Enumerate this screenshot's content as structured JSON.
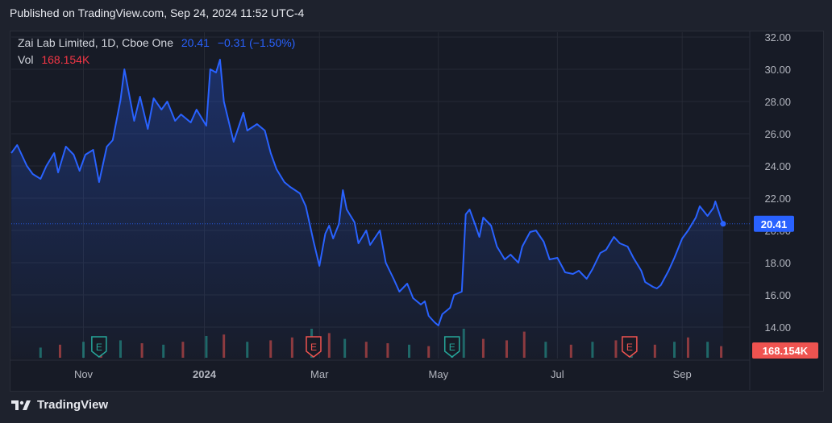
{
  "header": {
    "published": "Published on TradingView.com, Sep 24, 2024 11:52 UTC-4"
  },
  "legend": {
    "symbol": "Zai Lab Limited, 1D, Cboe One",
    "price": "20.41",
    "change": "−0.31 (−1.50%)",
    "vol_label": "Vol",
    "vol_value": "168.154K"
  },
  "footer": {
    "brand": "TradingView"
  },
  "colors": {
    "line": "#2962ff",
    "up_volume": "#26a69a",
    "down_volume": "#ef5350",
    "earnings_up": "#26a69a",
    "earnings_down": "#ef5350",
    "background": "#171b26"
  },
  "chart_data": {
    "type": "line",
    "ylim": [
      13,
      32.5
    ],
    "y_ticks": [
      "32.00",
      "30.00",
      "28.00",
      "26.00",
      "24.00",
      "22.00",
      "20.00",
      "18.00",
      "16.00",
      "14.00"
    ],
    "y_tick_values": [
      32,
      30,
      28,
      26,
      24,
      22,
      20,
      18,
      16,
      14
    ],
    "x_labels": [
      {
        "label": "Nov",
        "x": "2023-11-01"
      },
      {
        "label": "2024",
        "x": "2024-01-02"
      },
      {
        "label": "Mar",
        "x": "2024-03-01"
      },
      {
        "label": "May",
        "x": "2024-05-01"
      },
      {
        "label": "Jul",
        "x": "2024-07-01"
      },
      {
        "label": "Sep",
        "x": "2024-09-03"
      }
    ],
    "last_price_label": "20.41",
    "volume_label": "168.154K",
    "series": [
      {
        "points": [
          [
            "2023-09-25",
            24.8
          ],
          [
            "2023-09-28",
            25.3
          ],
          [
            "2023-10-03",
            24.0
          ],
          [
            "2023-10-06",
            23.5
          ],
          [
            "2023-10-10",
            23.2
          ],
          [
            "2023-10-13",
            24.0
          ],
          [
            "2023-10-17",
            24.8
          ],
          [
            "2023-10-19",
            23.6
          ],
          [
            "2023-10-23",
            25.2
          ],
          [
            "2023-10-27",
            24.7
          ],
          [
            "2023-10-30",
            23.7
          ],
          [
            "2023-11-02",
            24.7
          ],
          [
            "2023-11-06",
            25.0
          ],
          [
            "2023-11-09",
            23.0
          ],
          [
            "2023-11-13",
            25.2
          ],
          [
            "2023-11-16",
            25.6
          ],
          [
            "2023-11-20",
            28.1
          ],
          [
            "2023-11-22",
            30.0
          ],
          [
            "2023-11-27",
            26.8
          ],
          [
            "2023-11-30",
            28.3
          ],
          [
            "2023-12-04",
            26.3
          ],
          [
            "2023-12-07",
            28.2
          ],
          [
            "2023-12-11",
            27.5
          ],
          [
            "2023-12-14",
            28.0
          ],
          [
            "2023-12-18",
            26.8
          ],
          [
            "2023-12-21",
            27.2
          ],
          [
            "2023-12-26",
            26.7
          ],
          [
            "2023-12-29",
            27.5
          ],
          [
            "2024-01-03",
            26.5
          ],
          [
            "2024-01-05",
            30.0
          ],
          [
            "2024-01-08",
            29.8
          ],
          [
            "2024-01-10",
            30.6
          ],
          [
            "2024-01-12",
            28.0
          ],
          [
            "2024-01-17",
            25.5
          ],
          [
            "2024-01-22",
            27.3
          ],
          [
            "2024-01-24",
            26.2
          ],
          [
            "2024-01-29",
            26.6
          ],
          [
            "2024-02-02",
            26.2
          ],
          [
            "2024-02-05",
            24.8
          ],
          [
            "2024-02-08",
            23.8
          ],
          [
            "2024-02-12",
            23.0
          ],
          [
            "2024-02-15",
            22.7
          ],
          [
            "2024-02-20",
            22.3
          ],
          [
            "2024-02-23",
            21.5
          ],
          [
            "2024-02-27",
            19.3
          ],
          [
            "2024-03-01",
            17.8
          ],
          [
            "2024-03-04",
            19.8
          ],
          [
            "2024-03-06",
            20.3
          ],
          [
            "2024-03-08",
            19.5
          ],
          [
            "2024-03-11",
            20.4
          ],
          [
            "2024-03-13",
            22.5
          ],
          [
            "2024-03-15",
            21.3
          ],
          [
            "2024-03-19",
            20.5
          ],
          [
            "2024-03-21",
            19.2
          ],
          [
            "2024-03-25",
            20.0
          ],
          [
            "2024-03-27",
            19.1
          ],
          [
            "2024-04-01",
            20.0
          ],
          [
            "2024-04-04",
            18.0
          ],
          [
            "2024-04-08",
            17.0
          ],
          [
            "2024-04-11",
            16.2
          ],
          [
            "2024-04-15",
            16.7
          ],
          [
            "2024-04-18",
            15.8
          ],
          [
            "2024-04-22",
            15.4
          ],
          [
            "2024-04-24",
            15.6
          ],
          [
            "2024-04-26",
            14.7
          ],
          [
            "2024-04-29",
            14.3
          ],
          [
            "2024-05-01",
            14.1
          ],
          [
            "2024-05-03",
            14.8
          ],
          [
            "2024-05-07",
            15.2
          ],
          [
            "2024-05-09",
            16.0
          ],
          [
            "2024-05-13",
            16.2
          ],
          [
            "2024-05-15",
            21.0
          ],
          [
            "2024-05-17",
            21.3
          ],
          [
            "2024-05-20",
            20.3
          ],
          [
            "2024-05-22",
            19.6
          ],
          [
            "2024-05-24",
            20.8
          ],
          [
            "2024-05-28",
            20.3
          ],
          [
            "2024-05-31",
            19.0
          ],
          [
            "2024-06-04",
            18.2
          ],
          [
            "2024-06-07",
            18.5
          ],
          [
            "2024-06-11",
            18.0
          ],
          [
            "2024-06-13",
            19.0
          ],
          [
            "2024-06-17",
            19.9
          ],
          [
            "2024-06-20",
            20.0
          ],
          [
            "2024-06-24",
            19.3
          ],
          [
            "2024-06-27",
            18.2
          ],
          [
            "2024-07-01",
            18.3
          ],
          [
            "2024-07-05",
            17.4
          ],
          [
            "2024-07-09",
            17.3
          ],
          [
            "2024-07-12",
            17.5
          ],
          [
            "2024-07-16",
            17.0
          ],
          [
            "2024-07-19",
            17.6
          ],
          [
            "2024-07-23",
            18.6
          ],
          [
            "2024-07-26",
            18.8
          ],
          [
            "2024-07-30",
            19.6
          ],
          [
            "2024-08-02",
            19.2
          ],
          [
            "2024-08-06",
            19.0
          ],
          [
            "2024-08-09",
            18.3
          ],
          [
            "2024-08-13",
            17.5
          ],
          [
            "2024-08-15",
            16.8
          ],
          [
            "2024-08-19",
            16.5
          ],
          [
            "2024-08-21",
            16.4
          ],
          [
            "2024-08-23",
            16.6
          ],
          [
            "2024-08-27",
            17.5
          ],
          [
            "2024-08-30",
            18.3
          ],
          [
            "2024-09-03",
            19.5
          ],
          [
            "2024-09-06",
            20.0
          ],
          [
            "2024-09-10",
            20.8
          ],
          [
            "2024-09-12",
            21.5
          ],
          [
            "2024-09-16",
            20.9
          ],
          [
            "2024-09-19",
            21.4
          ],
          [
            "2024-09-20",
            21.8
          ],
          [
            "2024-09-23",
            20.7
          ],
          [
            "2024-09-24",
            20.41
          ]
        ]
      }
    ],
    "volume": [
      {
        "x": "2023-10-10",
        "v": 0.35,
        "up": true
      },
      {
        "x": "2023-10-20",
        "v": 0.45,
        "up": false
      },
      {
        "x": "2023-11-01",
        "v": 0.55,
        "up": true
      },
      {
        "x": "2023-11-10",
        "v": 0.4,
        "up": false
      },
      {
        "x": "2023-11-20",
        "v": 0.6,
        "up": true
      },
      {
        "x": "2023-12-01",
        "v": 0.5,
        "up": false
      },
      {
        "x": "2023-12-12",
        "v": 0.45,
        "up": true
      },
      {
        "x": "2023-12-22",
        "v": 0.55,
        "up": false
      },
      {
        "x": "2024-01-03",
        "v": 0.75,
        "up": true
      },
      {
        "x": "2024-01-12",
        "v": 0.8,
        "up": false
      },
      {
        "x": "2024-01-24",
        "v": 0.55,
        "up": true
      },
      {
        "x": "2024-02-05",
        "v": 0.6,
        "up": false
      },
      {
        "x": "2024-02-16",
        "v": 0.7,
        "up": false
      },
      {
        "x": "2024-02-26",
        "v": 1.0,
        "up": true
      },
      {
        "x": "2024-03-06",
        "v": 0.85,
        "up": false
      },
      {
        "x": "2024-03-14",
        "v": 0.65,
        "up": true
      },
      {
        "x": "2024-03-25",
        "v": 0.55,
        "up": false
      },
      {
        "x": "2024-04-05",
        "v": 0.5,
        "up": false
      },
      {
        "x": "2024-04-16",
        "v": 0.45,
        "up": true
      },
      {
        "x": "2024-04-26",
        "v": 0.4,
        "up": false
      },
      {
        "x": "2024-05-08",
        "v": 0.6,
        "up": true
      },
      {
        "x": "2024-05-14",
        "v": 1.0,
        "up": true
      },
      {
        "x": "2024-05-24",
        "v": 0.65,
        "up": false
      },
      {
        "x": "2024-06-05",
        "v": 0.6,
        "up": false
      },
      {
        "x": "2024-06-14",
        "v": 0.9,
        "up": false
      },
      {
        "x": "2024-06-25",
        "v": 0.55,
        "up": true
      },
      {
        "x": "2024-07-08",
        "v": 0.45,
        "up": false
      },
      {
        "x": "2024-07-19",
        "v": 0.55,
        "up": true
      },
      {
        "x": "2024-07-31",
        "v": 0.6,
        "up": false
      },
      {
        "x": "2024-08-08",
        "v": 0.7,
        "up": true
      },
      {
        "x": "2024-08-20",
        "v": 0.45,
        "up": false
      },
      {
        "x": "2024-08-30",
        "v": 0.55,
        "up": true
      },
      {
        "x": "2024-09-06",
        "v": 0.7,
        "up": false
      },
      {
        "x": "2024-09-16",
        "v": 0.55,
        "up": true
      },
      {
        "x": "2024-09-23",
        "v": 0.4,
        "up": false
      }
    ],
    "earnings": [
      {
        "x": "2023-11-09",
        "label": "E",
        "up": true
      },
      {
        "x": "2024-02-27",
        "label": "E",
        "up": false
      },
      {
        "x": "2024-05-08",
        "label": "E",
        "up": true
      },
      {
        "x": "2024-08-07",
        "label": "E",
        "up": false
      }
    ]
  }
}
